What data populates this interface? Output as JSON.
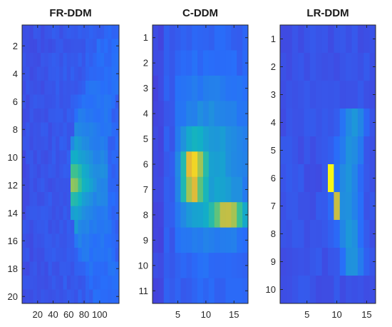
{
  "chart_data": [
    {
      "type": "heatmap",
      "title": "FR-DDM",
      "colormap": "parula",
      "x_ticks": [
        20,
        40,
        60,
        80,
        100
      ],
      "y_ticks": [
        2,
        4,
        6,
        8,
        10,
        12,
        14,
        16,
        18,
        20
      ],
      "xlim": [
        0,
        125
      ],
      "ylim": [
        0.5,
        20.5
      ],
      "y_reversed": true
    },
    {
      "type": "heatmap",
      "title": "C-DDM",
      "colormap": "parula",
      "x_ticks": [
        5,
        10,
        15
      ],
      "y_ticks": [
        1,
        2,
        3,
        4,
        5,
        6,
        7,
        8,
        9,
        10,
        11
      ],
      "xlim": [
        0.5,
        17.5
      ],
      "ylim": [
        0.5,
        11.5
      ],
      "y_reversed": true
    },
    {
      "type": "heatmap",
      "title": "LR-DDM",
      "colormap": "parula",
      "x_ticks": [
        5,
        10,
        15
      ],
      "y_ticks": [
        1,
        2,
        3,
        4,
        5,
        6,
        7,
        8,
        9,
        10
      ],
      "xlim": [
        0.5,
        16.5
      ],
      "ylim": [
        0.5,
        10.5
      ],
      "y_reversed": true
    }
  ]
}
